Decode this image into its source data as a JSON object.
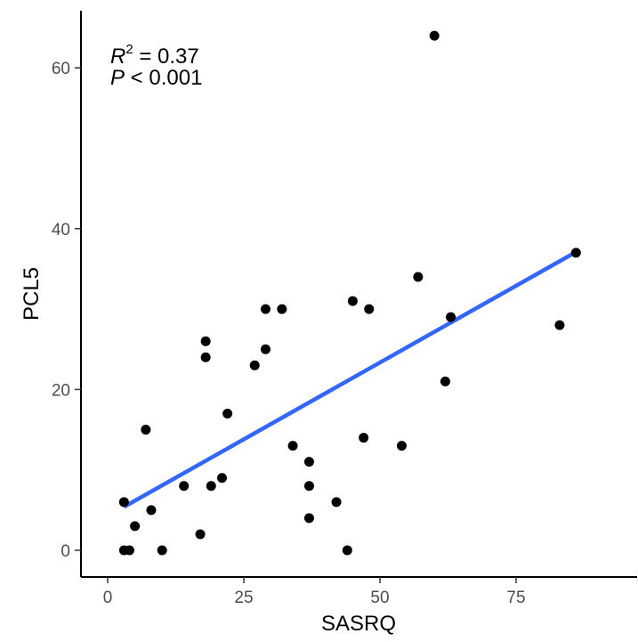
{
  "chart_data": {
    "type": "scatter",
    "xlabel": "SASRQ",
    "ylabel": "PCL5",
    "xlim": [
      -1,
      96
    ],
    "ylim": [
      -3,
      67
    ],
    "x_ticks": [
      0,
      25,
      50,
      75
    ],
    "y_ticks": [
      0,
      20,
      40,
      60
    ],
    "x_tick_labels": [
      "0",
      "25",
      "50",
      "75"
    ],
    "y_tick_labels": [
      "0",
      "20",
      "40",
      "60"
    ],
    "grid": false,
    "points": [
      {
        "x": 3,
        "y": 0
      },
      {
        "x": 4,
        "y": 0
      },
      {
        "x": 10,
        "y": 0
      },
      {
        "x": 44,
        "y": 0
      },
      {
        "x": 17,
        "y": 2
      },
      {
        "x": 5,
        "y": 3
      },
      {
        "x": 37,
        "y": 4
      },
      {
        "x": 8,
        "y": 5
      },
      {
        "x": 3,
        "y": 6
      },
      {
        "x": 42,
        "y": 6
      },
      {
        "x": 14,
        "y": 8
      },
      {
        "x": 19,
        "y": 8
      },
      {
        "x": 37,
        "y": 8
      },
      {
        "x": 21,
        "y": 9
      },
      {
        "x": 37,
        "y": 11
      },
      {
        "x": 34,
        "y": 13
      },
      {
        "x": 54,
        "y": 13
      },
      {
        "x": 47,
        "y": 14
      },
      {
        "x": 7,
        "y": 15
      },
      {
        "x": 22,
        "y": 17
      },
      {
        "x": 62,
        "y": 21
      },
      {
        "x": 27,
        "y": 23
      },
      {
        "x": 18,
        "y": 24
      },
      {
        "x": 29,
        "y": 25
      },
      {
        "x": 18,
        "y": 26
      },
      {
        "x": 83,
        "y": 28
      },
      {
        "x": 63,
        "y": 29
      },
      {
        "x": 29,
        "y": 30
      },
      {
        "x": 32,
        "y": 30
      },
      {
        "x": 48,
        "y": 30
      },
      {
        "x": 45,
        "y": 31
      },
      {
        "x": 57,
        "y": 34
      },
      {
        "x": 86,
        "y": 37
      },
      {
        "x": 60,
        "y": 64
      }
    ],
    "fit_line": {
      "x": [
        3,
        86
      ],
      "y": [
        5.4,
        37.1
      ],
      "color": "#3366ff"
    },
    "annotation": {
      "r_symbol": "R",
      "r_superscript": "2",
      "r_text": " = 0.37",
      "p_symbol": "P",
      "p_text": " < 0.001"
    },
    "point_color": "#000000"
  }
}
